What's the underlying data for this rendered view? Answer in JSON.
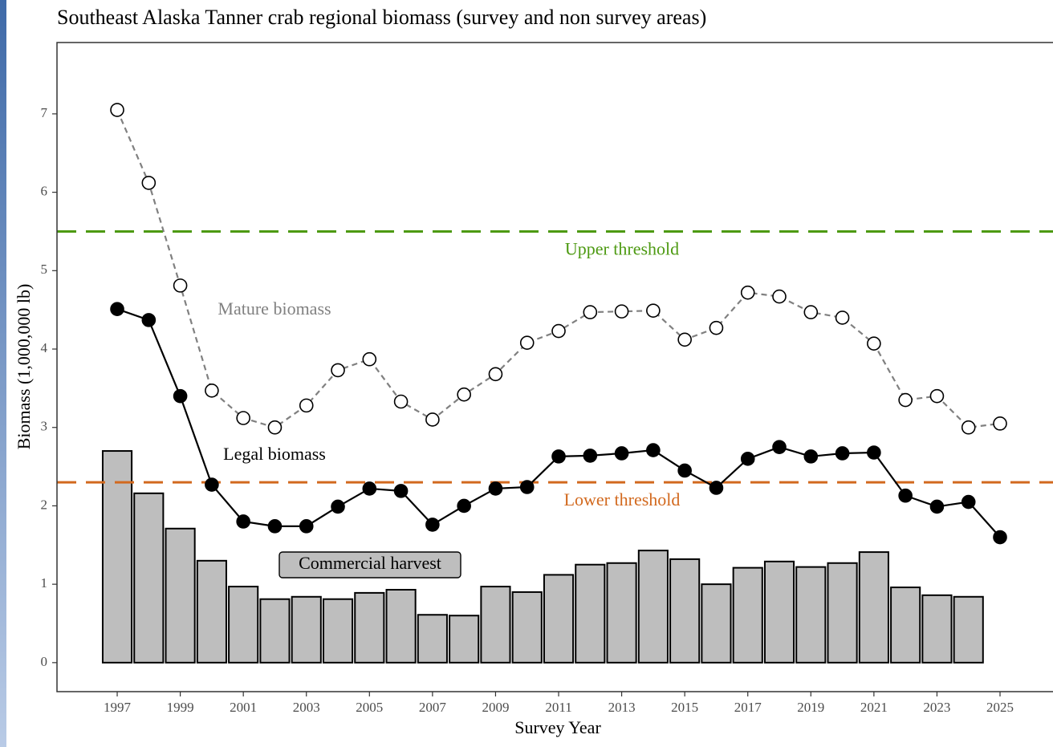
{
  "chart_data": {
    "type": "bar_line",
    "title": "Southeast Alaska Tanner crab regional biomass (survey and non survey areas)",
    "x_label": "Survey Year",
    "y_label": "Biomass (1,000,000 lb)",
    "x": [
      1997,
      1998,
      1999,
      2000,
      2001,
      2002,
      2003,
      2004,
      2005,
      2006,
      2007,
      2008,
      2009,
      2010,
      2011,
      2012,
      2013,
      2014,
      2015,
      2016,
      2017,
      2018,
      2019,
      2020,
      2021,
      2022,
      2023,
      2024,
      2025
    ],
    "series": [
      {
        "name": "Commercial harvest",
        "type": "bar",
        "color": "#bebebe",
        "values": [
          2.7,
          2.16,
          1.71,
          1.3,
          0.97,
          0.81,
          0.84,
          0.81,
          0.89,
          0.93,
          0.61,
          0.6,
          0.97,
          0.9,
          1.12,
          1.25,
          1.27,
          1.43,
          1.32,
          1.0,
          1.21,
          1.29,
          1.22,
          1.27,
          1.41,
          0.96,
          0.86,
          0.84,
          null
        ]
      },
      {
        "name": "Mature biomass",
        "type": "line",
        "color": "#808080",
        "marker_fill": "#ffffff",
        "dashed": true,
        "values": [
          7.05,
          6.12,
          4.81,
          3.47,
          3.12,
          3.0,
          3.28,
          3.73,
          3.87,
          3.33,
          3.1,
          3.42,
          3.68,
          4.08,
          4.23,
          4.47,
          4.48,
          4.49,
          4.12,
          4.27,
          4.72,
          4.67,
          4.47,
          4.4,
          4.07,
          3.35,
          3.4,
          3.0,
          3.05
        ]
      },
      {
        "name": "Legal biomass",
        "type": "line",
        "color": "#000000",
        "marker_fill": "#000000",
        "dashed": false,
        "values": [
          4.51,
          4.37,
          3.4,
          2.27,
          1.8,
          1.74,
          1.74,
          1.99,
          2.22,
          2.19,
          1.76,
          2.0,
          2.22,
          2.24,
          2.63,
          2.64,
          2.67,
          2.71,
          2.45,
          2.23,
          2.6,
          2.75,
          2.63,
          2.67,
          2.68,
          2.13,
          1.99,
          2.05,
          1.6
        ]
      }
    ],
    "thresholds": [
      {
        "label": "Upper threshold",
        "value": 5.5,
        "color": "#4d9a12"
      },
      {
        "label": "Lower threshold",
        "value": 2.3,
        "color": "#d2691e"
      }
    ],
    "xlim": [
      1995.09,
      2026.68
    ],
    "xticks": [
      1997,
      1999,
      2001,
      2003,
      2005,
      2007,
      2009,
      2011,
      2013,
      2015,
      2017,
      2019,
      2021,
      2023,
      2025
    ],
    "ylim": [
      -0.37,
      7.91
    ],
    "yticks": [
      0,
      1,
      2,
      3,
      4,
      5,
      6,
      7
    ],
    "grid": false
  }
}
